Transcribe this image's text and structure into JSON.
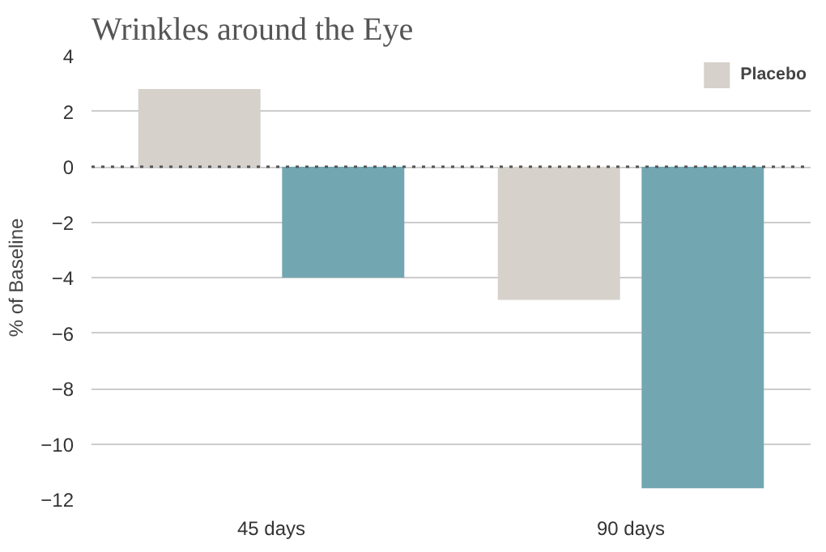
{
  "chart_data": {
    "type": "bar",
    "title": "Wrinkles around the Eye",
    "ylabel": "% of Baseline",
    "categories": [
      "45 days",
      "90 days"
    ],
    "series": [
      {
        "name": "Placebo",
        "color": "#d6d1cb",
        "values": [
          2.8,
          -4.8
        ]
      },
      {
        "color": "#72a7b2",
        "values": [
          -4.0,
          -11.6
        ]
      }
    ],
    "ylim": [
      -12,
      4
    ],
    "yticks": [
      -12,
      -10,
      -8,
      -6,
      -4,
      -2,
      0,
      2,
      4
    ],
    "grid": "y",
    "legend": "top right",
    "ref_lines": [
      {
        "axis": "y",
        "value": 0,
        "color": "#555555",
        "line_style": "dotted"
      }
    ]
  }
}
